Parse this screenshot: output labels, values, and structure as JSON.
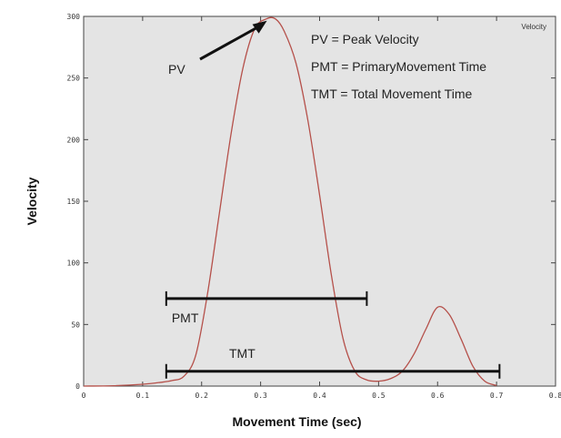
{
  "chart_data": {
    "type": "line",
    "title": "",
    "xlabel": "Movement Time (sec)",
    "ylabel": "Velocity",
    "xlim": [
      0,
      0.8
    ],
    "ylim": [
      0,
      300
    ],
    "grid": false,
    "x_ticks": [
      "0",
      "0.1",
      "0.2",
      "0.3",
      "0.4",
      "0.5",
      "0.6",
      "0.7",
      "0.8"
    ],
    "y_ticks": [
      "0",
      "50",
      "100",
      "150",
      "200",
      "250",
      "300"
    ],
    "legend": {
      "label": "Velocity",
      "placement": "top-right"
    },
    "series": [
      {
        "name": "Velocity",
        "color": "#b5504a",
        "x": [
          0,
          0.05,
          0.1,
          0.13,
          0.15,
          0.17,
          0.19,
          0.21,
          0.23,
          0.25,
          0.27,
          0.29,
          0.31,
          0.325,
          0.34,
          0.36,
          0.38,
          0.4,
          0.42,
          0.44,
          0.46,
          0.48,
          0.5,
          0.52,
          0.54,
          0.56,
          0.58,
          0.6,
          0.62,
          0.64,
          0.66,
          0.68,
          0.7
        ],
        "values": [
          0,
          0.3,
          1.5,
          3,
          4.5,
          8,
          25,
          75,
          140,
          205,
          258,
          290,
          298,
          298,
          288,
          262,
          216,
          155,
          90,
          38,
          12,
          5,
          4,
          6,
          12,
          26,
          46,
          64,
          58,
          38,
          16,
          4,
          0.5
        ]
      }
    ],
    "annotations": {
      "pv_label": "PV",
      "legend_lines": [
        "PV = Peak Velocity",
        "PMT = PrimaryMovement Time",
        "TMT = Total Movement Time"
      ],
      "pmt": {
        "label": "PMT",
        "start": 0.14,
        "end": 0.48,
        "level": 71
      },
      "tmt": {
        "label": "TMT",
        "start": 0.14,
        "end": 0.705,
        "level": 12
      },
      "pv_point": {
        "x": 0.32,
        "y": 298
      }
    }
  }
}
